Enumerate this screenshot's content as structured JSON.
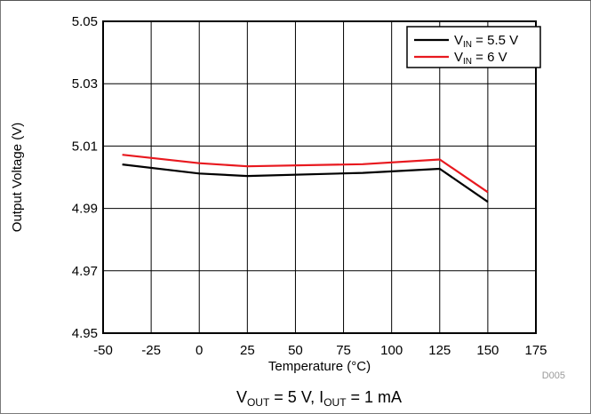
{
  "chart_data": {
    "type": "line",
    "title": "",
    "xlabel": "Temperature (°C)",
    "ylabel": "Output Voltage (V)",
    "xlim": [
      -50,
      175
    ],
    "ylim": [
      4.95,
      5.05
    ],
    "xticks": [
      "-50",
      "-25",
      "0",
      "25",
      "50",
      "75",
      "100",
      "125",
      "150",
      "175"
    ],
    "yticks": [
      "4.95",
      "4.97",
      "4.99",
      "5.01",
      "5.03",
      "5.05"
    ],
    "grid": true,
    "legend_position": "top-right",
    "x": [
      -40,
      0,
      25,
      85,
      125,
      150
    ],
    "series": [
      {
        "name": "V_IN = 5.5 V",
        "name_main": "V",
        "name_sub": "IN",
        "name_rest": " = 5.5 V",
        "color": "#000000",
        "values": [
          5.0041,
          5.0012,
          5.0004,
          5.0014,
          5.0027,
          4.9921
        ]
      },
      {
        "name": "V_IN = 6 V",
        "name_main": "V",
        "name_sub": "IN",
        "name_rest": " = 6 V",
        "color": "#e8191f",
        "values": [
          5.0072,
          5.0045,
          5.0035,
          5.0042,
          5.0057,
          4.9952
        ]
      }
    ]
  },
  "figure_code": "D005",
  "caption": {
    "part1_main": "V",
    "part1_sub": "OUT",
    "part1_rest": " = 5 V, I",
    "part2_sub": "OUT",
    "part2_rest": " = 1 mA"
  }
}
